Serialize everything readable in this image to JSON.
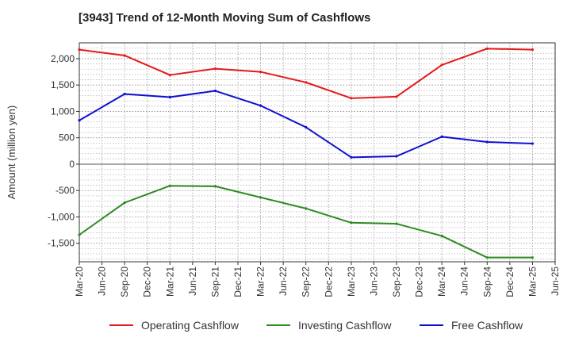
{
  "chart_data": {
    "type": "line",
    "title": "[3943]  Trend of 12-Month Moving Sum of Cashflows",
    "ylabel": "Amount (million yen)",
    "xlabel": "",
    "ylim": [
      -1850,
      2300
    ],
    "yticks": [
      2000,
      1500,
      1000,
      500,
      0,
      -500,
      -1000,
      -1500
    ],
    "ytick_labels": [
      "2,000",
      "1,500",
      "1,000",
      "500",
      "0",
      "-500",
      "-1,000",
      "-1,500"
    ],
    "categories": [
      "Mar-20",
      "Jun-20",
      "Sep-20",
      "Dec-20",
      "Mar-21",
      "Jun-21",
      "Sep-21",
      "Dec-21",
      "Mar-22",
      "Jun-22",
      "Sep-22",
      "Dec-22",
      "Mar-23",
      "Jun-23",
      "Sep-23",
      "Dec-23",
      "Mar-24",
      "Jun-24",
      "Sep-24",
      "Dec-24",
      "Mar-25",
      "Jun-25"
    ],
    "grid": true,
    "legend_position": "bottom",
    "series": [
      {
        "name": "Operating Cashflow",
        "color": "#e41a1c",
        "points": [
          {
            "x": "Mar-20",
            "y": 2170
          },
          {
            "x": "Sep-20",
            "y": 2060
          },
          {
            "x": "Mar-21",
            "y": 1690
          },
          {
            "x": "Sep-21",
            "y": 1810
          },
          {
            "x": "Mar-22",
            "y": 1750
          },
          {
            "x": "Sep-22",
            "y": 1550
          },
          {
            "x": "Mar-23",
            "y": 1250
          },
          {
            "x": "Sep-23",
            "y": 1280
          },
          {
            "x": "Mar-24",
            "y": 1880
          },
          {
            "x": "Sep-24",
            "y": 2190
          },
          {
            "x": "Mar-25",
            "y": 2170
          }
        ]
      },
      {
        "name": "Investing Cashflow",
        "color": "#2e8b22",
        "points": [
          {
            "x": "Mar-20",
            "y": -1340
          },
          {
            "x": "Sep-20",
            "y": -730
          },
          {
            "x": "Mar-21",
            "y": -410
          },
          {
            "x": "Sep-21",
            "y": -420
          },
          {
            "x": "Mar-22",
            "y": -630
          },
          {
            "x": "Sep-22",
            "y": -840
          },
          {
            "x": "Mar-23",
            "y": -1110
          },
          {
            "x": "Sep-23",
            "y": -1130
          },
          {
            "x": "Mar-24",
            "y": -1360
          },
          {
            "x": "Sep-24",
            "y": -1770
          },
          {
            "x": "Mar-25",
            "y": -1770
          }
        ]
      },
      {
        "name": "Free Cashflow",
        "color": "#1010d0",
        "points": [
          {
            "x": "Mar-20",
            "y": 830
          },
          {
            "x": "Sep-20",
            "y": 1330
          },
          {
            "x": "Mar-21",
            "y": 1270
          },
          {
            "x": "Sep-21",
            "y": 1390
          },
          {
            "x": "Mar-22",
            "y": 1110
          },
          {
            "x": "Sep-22",
            "y": 700
          },
          {
            "x": "Mar-23",
            "y": 130
          },
          {
            "x": "Sep-23",
            "y": 150
          },
          {
            "x": "Mar-24",
            "y": 520
          },
          {
            "x": "Sep-24",
            "y": 420
          },
          {
            "x": "Mar-25",
            "y": 390
          }
        ]
      }
    ]
  }
}
